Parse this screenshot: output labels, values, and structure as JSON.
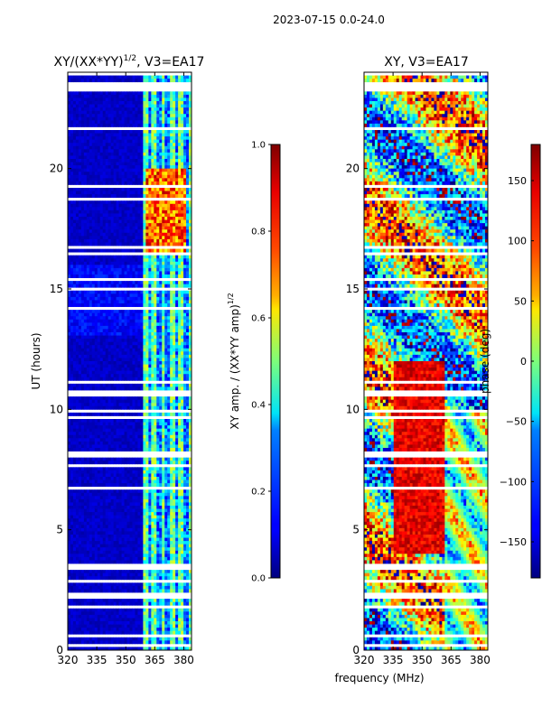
{
  "page_title": "2023-07-15 0.0-24.0",
  "xlabel_shared": "frequency (MHz)",
  "colors": {
    "white": "#ffffff",
    "black": "#000000",
    "jet_low": "#00007f",
    "jet_high": "#7f0000"
  },
  "chart_data": [
    {
      "type": "heatmap",
      "title": "XY/(XX*YY)",
      "title_sup": "1/2",
      "title_suffix": ", V3=EA17",
      "ylabel": "UT (hours)",
      "xlim": [
        320,
        384
      ],
      "ylim": [
        0,
        24
      ],
      "x_ticks": [
        320,
        335,
        350,
        365,
        380
      ],
      "y_ticks": [
        0,
        5,
        10,
        15,
        20
      ],
      "colorbar": {
        "label": "XY amp. / (XX*YY amp)",
        "label_sup": "1/2",
        "range": [
          0,
          1
        ],
        "ticks": [
          "0.0",
          "0.2",
          "0.4",
          "0.6",
          "0.8",
          "1.0"
        ]
      }
    },
    {
      "type": "heatmap",
      "title": "XY, V3=EA17",
      "ylabel": "",
      "xlim": [
        320,
        384
      ],
      "ylim": [
        0,
        24
      ],
      "x_ticks": [
        320,
        335,
        350,
        365,
        380
      ],
      "y_ticks": [
        0,
        5,
        10,
        15,
        20
      ],
      "colorbar": {
        "label": "phase (deg)",
        "range": [
          -180,
          180
        ],
        "ticks": [
          "−150",
          "−100",
          "−50",
          "0",
          "50",
          "100",
          "150"
        ]
      }
    }
  ]
}
